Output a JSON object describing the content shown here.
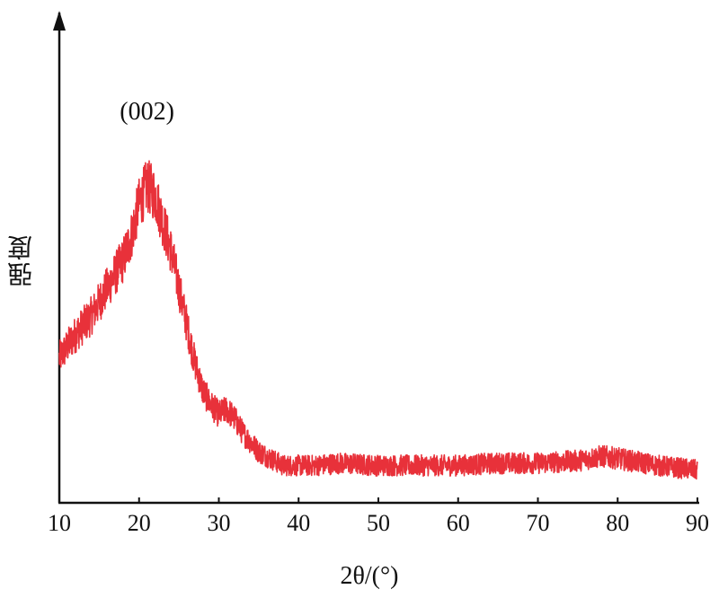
{
  "chart_data": {
    "type": "line",
    "title": "",
    "xlabel": "2θ/(°)",
    "ylabel": "强度",
    "xlim": [
      10,
      90
    ],
    "x_ticks": [
      "10",
      "20",
      "30",
      "40",
      "50",
      "60",
      "70",
      "80",
      "90"
    ],
    "y_ticks": [],
    "grid": false,
    "legend": "none",
    "series_color": "#e8313a",
    "annotations": [
      {
        "text": "(002)",
        "x": 21
      }
    ],
    "series": [
      {
        "x": [
          10,
          12,
          14,
          16,
          18,
          19,
          20,
          21,
          22,
          23,
          24,
          25,
          26,
          27,
          28,
          29,
          30,
          31,
          32,
          33,
          34,
          35,
          36,
          37,
          38,
          40,
          42,
          45,
          50,
          55,
          60,
          65,
          70,
          75,
          78,
          80,
          85,
          90
        ],
        "values": [
          0.31,
          0.36,
          0.4,
          0.46,
          0.52,
          0.57,
          0.64,
          0.68,
          0.66,
          0.6,
          0.54,
          0.46,
          0.38,
          0.3,
          0.24,
          0.21,
          0.19,
          0.2,
          0.18,
          0.15,
          0.13,
          0.11,
          0.1,
          0.09,
          0.08,
          0.08,
          0.08,
          0.085,
          0.08,
          0.08,
          0.08,
          0.085,
          0.085,
          0.09,
          0.1,
          0.095,
          0.08,
          0.07
        ]
      }
    ]
  }
}
